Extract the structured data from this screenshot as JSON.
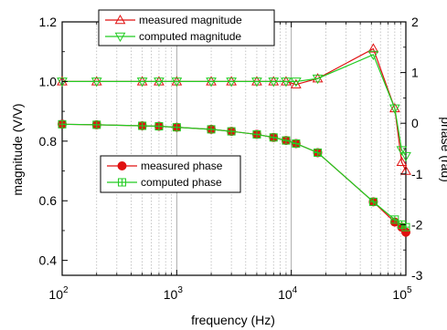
{
  "chart_data": {
    "type": "line",
    "xlabel": "frequency (Hz)",
    "ylabel_left": "magnitude (V/V)",
    "ylabel_right": "phase (rad)",
    "x_scale": "log",
    "xlim": [
      100,
      100000
    ],
    "ylim_left": [
      0.35,
      1.2
    ],
    "ylim_right": [
      -3,
      2
    ],
    "x_ticks": [
      100,
      1000,
      10000,
      100000
    ],
    "x_tick_labels": [
      {
        "base": "10",
        "exp": "2"
      },
      {
        "base": "10",
        "exp": "3"
      },
      {
        "base": "10",
        "exp": "4"
      },
      {
        "base": "10",
        "exp": "5"
      }
    ],
    "y_ticks_left": [
      "0.4",
      "0.6",
      "0.8",
      "1.0",
      "1.2"
    ],
    "y_ticks_right": [
      "-3",
      "-2",
      "-1",
      "0",
      "1",
      "2"
    ],
    "grid": "vertical dotted at log minor ticks, solid at decades",
    "series": [
      {
        "name": "measured magnitude",
        "axis": "left",
        "color": "#e01010",
        "marker": "triangle-up-open",
        "x": [
          100,
          200,
          500,
          700,
          1000,
          2000,
          3000,
          5000,
          7000,
          9000,
          11000,
          17000,
          52000,
          80000,
          92000,
          100000
        ],
        "y": [
          1.0,
          1.0,
          1.0,
          1.0,
          1.0,
          1.0,
          1.0,
          1.0,
          1.0,
          1.0,
          0.99,
          1.01,
          1.11,
          0.91,
          0.73,
          0.7
        ]
      },
      {
        "name": "computed magnitude",
        "axis": "left",
        "color": "#22cc22",
        "marker": "triangle-down-open",
        "x": [
          100,
          200,
          500,
          700,
          1000,
          2000,
          3000,
          5000,
          7000,
          9000,
          11000,
          17000,
          52000,
          80000,
          92000,
          100000
        ],
        "y": [
          1.0,
          1.0,
          1.0,
          1.0,
          1.0,
          1.0,
          1.0,
          1.0,
          1.0,
          1.0,
          1.0,
          1.01,
          1.09,
          0.91,
          0.77,
          0.75
        ]
      },
      {
        "name": "measured phase",
        "axis": "right",
        "color": "#e01010",
        "marker": "circle-filled",
        "x": [
          100,
          200,
          500,
          700,
          1000,
          2000,
          3000,
          5000,
          7000,
          9000,
          11000,
          17000,
          52000,
          80000,
          92000,
          100000
        ],
        "y": [
          -0.02,
          -0.03,
          -0.05,
          -0.06,
          -0.08,
          -0.12,
          -0.16,
          -0.22,
          -0.28,
          -0.34,
          -0.4,
          -0.58,
          -1.55,
          -1.95,
          -2.05,
          -2.15
        ]
      },
      {
        "name": "computed phase",
        "axis": "right",
        "color": "#22cc22",
        "marker": "square-plus-open",
        "x": [
          100,
          200,
          500,
          700,
          1000,
          2000,
          3000,
          5000,
          7000,
          9000,
          11000,
          17000,
          52000,
          80000,
          92000,
          100000
        ],
        "y": [
          -0.02,
          -0.03,
          -0.05,
          -0.06,
          -0.08,
          -0.12,
          -0.16,
          -0.22,
          -0.28,
          -0.34,
          -0.4,
          -0.58,
          -1.55,
          -1.9,
          -2.0,
          -2.05
        ]
      }
    ],
    "legends": [
      {
        "placement": "top-center",
        "entries": [
          "measured magnitude",
          "computed magnitude"
        ]
      },
      {
        "placement": "center-left",
        "entries": [
          "measured phase",
          "computed phase"
        ]
      }
    ]
  }
}
